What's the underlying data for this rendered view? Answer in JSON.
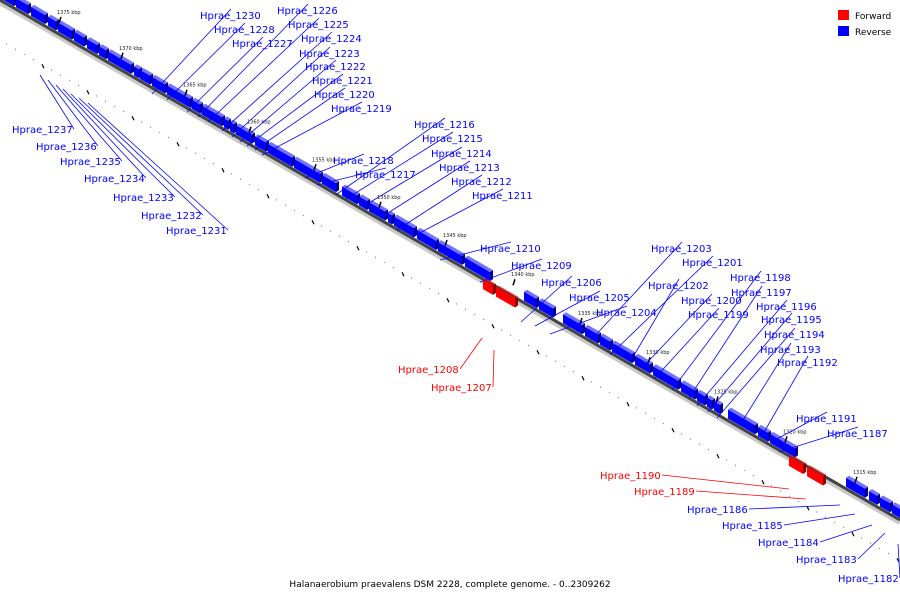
{
  "caption": "Halanaerobium praevalens DSM 2228, complete genome. - 0..2309262",
  "legend": {
    "forward": {
      "label": "Forward",
      "color": "#ff0000"
    },
    "reverse": {
      "label": "Reverse",
      "color": "#0000ff"
    }
  },
  "kbp_labels": [
    "1375 kbp",
    "1370 kbp",
    "1365 kbp",
    "1360 kbp",
    "1355 kbp",
    "1350 kbp",
    "1345 kbp",
    "1340 kbp",
    "1335 kbp",
    "1330 kbp",
    "1325 kbp",
    "1320 kbp",
    "1315 kbp"
  ],
  "genes": [
    {
      "label": "Hprae_1230",
      "strand": "reverse"
    },
    {
      "label": "Hprae_1228",
      "strand": "reverse"
    },
    {
      "label": "Hprae_1227",
      "strand": "reverse"
    },
    {
      "label": "Hprae_1226",
      "strand": "reverse"
    },
    {
      "label": "Hprae_1225",
      "strand": "reverse"
    },
    {
      "label": "Hprae_1224",
      "strand": "reverse"
    },
    {
      "label": "Hprae_1223",
      "strand": "reverse"
    },
    {
      "label": "Hprae_1222",
      "strand": "reverse"
    },
    {
      "label": "Hprae_1221",
      "strand": "reverse"
    },
    {
      "label": "Hprae_1220",
      "strand": "reverse"
    },
    {
      "label": "Hprae_1219",
      "strand": "reverse"
    },
    {
      "label": "Hprae_1216",
      "strand": "reverse"
    },
    {
      "label": "Hprae_1215",
      "strand": "reverse"
    },
    {
      "label": "Hprae_1214",
      "strand": "reverse"
    },
    {
      "label": "Hprae_1213",
      "strand": "reverse"
    },
    {
      "label": "Hprae_1212",
      "strand": "reverse"
    },
    {
      "label": "Hprae_1211",
      "strand": "reverse"
    },
    {
      "label": "Hprae_1218",
      "strand": "reverse"
    },
    {
      "label": "Hprae_1217",
      "strand": "reverse"
    },
    {
      "label": "Hprae_1210",
      "strand": "reverse"
    },
    {
      "label": "Hprae_1209",
      "strand": "reverse"
    },
    {
      "label": "Hprae_1206",
      "strand": "reverse"
    },
    {
      "label": "Hprae_1205",
      "strand": "reverse"
    },
    {
      "label": "Hprae_1204",
      "strand": "reverse"
    },
    {
      "label": "Hprae_1203",
      "strand": "reverse"
    },
    {
      "label": "Hprae_1201",
      "strand": "reverse"
    },
    {
      "label": "Hprae_1202",
      "strand": "reverse"
    },
    {
      "label": "Hprae_1200",
      "strand": "reverse"
    },
    {
      "label": "Hprae_1199",
      "strand": "reverse"
    },
    {
      "label": "Hprae_1198",
      "strand": "reverse"
    },
    {
      "label": "Hprae_1197",
      "strand": "reverse"
    },
    {
      "label": "Hprae_1196",
      "strand": "reverse"
    },
    {
      "label": "Hprae_1195",
      "strand": "reverse"
    },
    {
      "label": "Hprae_1194",
      "strand": "reverse"
    },
    {
      "label": "Hprae_1193",
      "strand": "reverse"
    },
    {
      "label": "Hprae_1192",
      "strand": "reverse"
    },
    {
      "label": "Hprae_1191",
      "strand": "reverse"
    },
    {
      "label": "Hprae_1187",
      "strand": "reverse"
    },
    {
      "label": "Hprae_1237",
      "strand": "reverse"
    },
    {
      "label": "Hprae_1236",
      "strand": "reverse"
    },
    {
      "label": "Hprae_1235",
      "strand": "reverse"
    },
    {
      "label": "Hprae_1234",
      "strand": "reverse"
    },
    {
      "label": "Hprae_1233",
      "strand": "reverse"
    },
    {
      "label": "Hprae_1232",
      "strand": "reverse"
    },
    {
      "label": "Hprae_1231",
      "strand": "reverse"
    },
    {
      "label": "Hprae_1208",
      "strand": "forward"
    },
    {
      "label": "Hprae_1207",
      "strand": "forward"
    },
    {
      "label": "Hprae_1190",
      "strand": "forward"
    },
    {
      "label": "Hprae_1189",
      "strand": "forward"
    },
    {
      "label": "Hprae_1186",
      "strand": "reverse"
    },
    {
      "label": "Hprae_1185",
      "strand": "reverse"
    },
    {
      "label": "Hprae_1184",
      "strand": "reverse"
    },
    {
      "label": "Hprae_1183",
      "strand": "reverse"
    },
    {
      "label": "Hprae_1182",
      "strand": "reverse"
    }
  ]
}
